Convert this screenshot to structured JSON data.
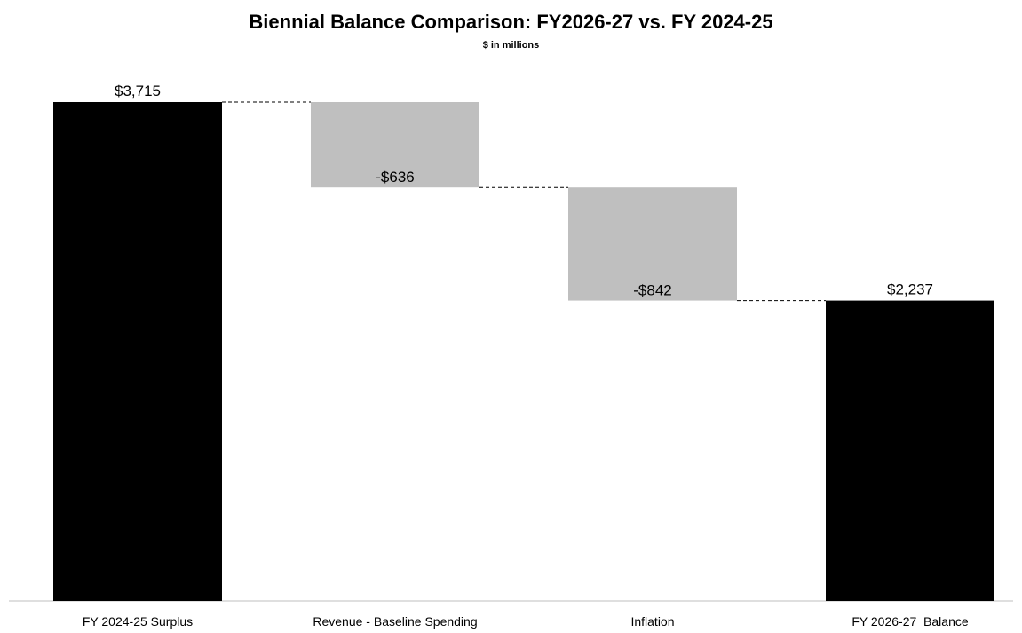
{
  "chart_data": {
    "type": "bar",
    "subtype": "waterfall",
    "title": "Biennial Balance Comparison: FY2026-27 vs. FY 2024-25",
    "subtitle": "$ in millions",
    "categories": [
      "FY 2024-25 Surplus",
      "Revenue - Baseline Spending",
      "Inflation",
      "FY 2026-27  Balance"
    ],
    "values": [
      3715,
      -636,
      -842,
      2237
    ],
    "data_labels": [
      "$3,715",
      "-$636",
      "-$842",
      "$2,237"
    ],
    "bar_kinds": [
      "total",
      "change",
      "change",
      "total"
    ],
    "ylim": [
      0,
      3715
    ],
    "grid": false,
    "legend": "none",
    "colors": {
      "total": "#000000",
      "change": "#bfbfbf",
      "connector": "#000000",
      "axis": "#bfbfbf"
    }
  }
}
